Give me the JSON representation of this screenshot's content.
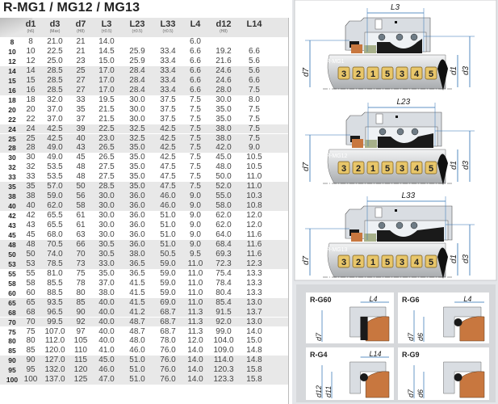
{
  "title": "R-MG1 / MG12 / MG13",
  "table": {
    "columns": [
      {
        "main": "",
        "sub": ""
      },
      {
        "main": "d1",
        "sub": "(h6)"
      },
      {
        "main": "d3",
        "sub": "(Max)"
      },
      {
        "main": "d7",
        "sub": "(H8)"
      },
      {
        "main": "L3",
        "sub": "(±0.5)"
      },
      {
        "main": "L23",
        "sub": "(±0.5)"
      },
      {
        "main": "L33",
        "sub": "(±0.5)"
      },
      {
        "main": "L4",
        "sub": ""
      },
      {
        "main": "d12",
        "sub": "(H8)"
      },
      {
        "main": "L14",
        "sub": ""
      }
    ],
    "rows": [
      [
        "8",
        "8",
        "21.0",
        "21",
        "14.0",
        "",
        "",
        "6.0",
        "",
        ""
      ],
      [
        "10",
        "10",
        "22.5",
        "21",
        "14.5",
        "25.9",
        "33.4",
        "6.6",
        "19.2",
        "6.6"
      ],
      [
        "12",
        "12",
        "25.0",
        "23",
        "15.0",
        "25.9",
        "33.4",
        "6.6",
        "21.6",
        "5.6"
      ],
      [
        "14",
        "14",
        "28.5",
        "25",
        "17.0",
        "28.4",
        "33.4",
        "6.6",
        "24.6",
        "5.6"
      ],
      [
        "15",
        "15",
        "28.5",
        "27",
        "17.0",
        "28.4",
        "33.4",
        "6.6",
        "24.6",
        "6.6"
      ],
      [
        "16",
        "16",
        "28.5",
        "27",
        "17.0",
        "28.4",
        "33.4",
        "6.6",
        "28.0",
        "7.5"
      ],
      [
        "18",
        "18",
        "32.0",
        "33",
        "19.5",
        "30.0",
        "37.5",
        "7.5",
        "30.0",
        "8.0"
      ],
      [
        "20",
        "20",
        "37.0",
        "35",
        "21.5",
        "30.0",
        "37.5",
        "7.5",
        "35.0",
        "7.5"
      ],
      [
        "22",
        "22",
        "37.0",
        "37",
        "21.5",
        "30.0",
        "37.5",
        "7.5",
        "35.0",
        "7.5"
      ],
      [
        "24",
        "24",
        "42.5",
        "39",
        "22.5",
        "32.5",
        "42.5",
        "7.5",
        "38.0",
        "7.5"
      ],
      [
        "25",
        "25",
        "42.5",
        "40",
        "23.0",
        "32.5",
        "42.5",
        "7.5",
        "38.0",
        "7.5"
      ],
      [
        "28",
        "28",
        "49.0",
        "43",
        "26.5",
        "35.0",
        "42.5",
        "7.5",
        "42.0",
        "9.0"
      ],
      [
        "30",
        "30",
        "49.0",
        "45",
        "26.5",
        "35.0",
        "42.5",
        "7.5",
        "45.0",
        "10.5"
      ],
      [
        "32",
        "32",
        "53.5",
        "48",
        "27.5",
        "35.0",
        "47.5",
        "7.5",
        "48.0",
        "10.5"
      ],
      [
        "33",
        "33",
        "53.5",
        "48",
        "27.5",
        "35.0",
        "47.5",
        "7.5",
        "50.0",
        "11.0"
      ],
      [
        "35",
        "35",
        "57.0",
        "50",
        "28.5",
        "35.0",
        "47.5",
        "7.5",
        "52.0",
        "11.0"
      ],
      [
        "38",
        "38",
        "59.0",
        "56",
        "30.0",
        "36.0",
        "46.0",
        "9.0",
        "55.0",
        "10.3"
      ],
      [
        "40",
        "40",
        "62.0",
        "58",
        "30.0",
        "36.0",
        "46.0",
        "9.0",
        "58.0",
        "10.8"
      ],
      [
        "42",
        "42",
        "65.5",
        "61",
        "30.0",
        "36.0",
        "51.0",
        "9.0",
        "62.0",
        "12.0"
      ],
      [
        "43",
        "43",
        "65.5",
        "61",
        "30.0",
        "36.0",
        "51.0",
        "9.0",
        "62.0",
        "12.0"
      ],
      [
        "45",
        "45",
        "68.0",
        "63",
        "30.0",
        "36.0",
        "51.0",
        "9.0",
        "64.0",
        "11.6"
      ],
      [
        "48",
        "48",
        "70.5",
        "66",
        "30.5",
        "36.0",
        "51.0",
        "9.0",
        "68.4",
        "11.6"
      ],
      [
        "50",
        "50",
        "74.0",
        "70",
        "30.5",
        "38.0",
        "50.5",
        "9.5",
        "69.3",
        "11.6"
      ],
      [
        "53",
        "53",
        "78.5",
        "73",
        "33.0",
        "36.5",
        "59.0",
        "11.0",
        "72.3",
        "12.3"
      ],
      [
        "55",
        "55",
        "81.0",
        "75",
        "35.0",
        "36.5",
        "59.0",
        "11.0",
        "75.4",
        "13.3"
      ],
      [
        "58",
        "58",
        "85.5",
        "78",
        "37.0",
        "41.5",
        "59.0",
        "11.0",
        "78.4",
        "13.3"
      ],
      [
        "60",
        "60",
        "88.5",
        "80",
        "38.0",
        "41.5",
        "59.0",
        "11.0",
        "80.4",
        "13.3"
      ],
      [
        "65",
        "65",
        "93.5",
        "85",
        "40.0",
        "41.5",
        "69.0",
        "11.0",
        "85.4",
        "13.0"
      ],
      [
        "68",
        "68",
        "96.5",
        "90",
        "40.0",
        "41.2",
        "68.7",
        "11.3",
        "91.5",
        "13.7"
      ],
      [
        "70",
        "70",
        "99.5",
        "92",
        "40.0",
        "48.7",
        "68.7",
        "11.3",
        "92.0",
        "13.0"
      ],
      [
        "75",
        "75",
        "107.0",
        "97",
        "40.0",
        "48.7",
        "68.7",
        "11.3",
        "99.0",
        "14.0"
      ],
      [
        "80",
        "80",
        "112.0",
        "105",
        "40.0",
        "48.0",
        "78.0",
        "12.0",
        "104.0",
        "15.0"
      ],
      [
        "85",
        "85",
        "120.0",
        "110",
        "41.0",
        "46.0",
        "76.0",
        "14.0",
        "109.0",
        "14.8"
      ],
      [
        "90",
        "90",
        "127.0",
        "115",
        "45.0",
        "51.0",
        "76.0",
        "14.0",
        "114.0",
        "14.8"
      ],
      [
        "95",
        "95",
        "132.0",
        "120",
        "46.0",
        "51.0",
        "76.0",
        "14.0",
        "120.3",
        "15.8"
      ],
      [
        "100",
        "100",
        "137.0",
        "125",
        "47.0",
        "51.0",
        "76.0",
        "14.0",
        "123.3",
        "15.8"
      ]
    ]
  },
  "diagrams": [
    {
      "model": "R-MG1",
      "length_label": "L3",
      "left_dim": "d7",
      "right_dims": [
        "d1",
        "d3"
      ],
      "parts": [
        "3",
        "2",
        "1",
        "5",
        "3",
        "4",
        "5"
      ]
    },
    {
      "model": "R-MG12",
      "length_label": "L23",
      "left_dim": "d7",
      "right_dims": [
        "d1",
        "d3"
      ],
      "parts": [
        "3",
        "2",
        "1",
        "5",
        "3",
        "4",
        "5"
      ]
    },
    {
      "model": "R-MG13",
      "length_label": "L33",
      "left_dim": "d7",
      "right_dims": [
        "d1",
        "d3"
      ],
      "parts": [
        "3",
        "2",
        "1",
        "5",
        "3",
        "4",
        "5"
      ]
    }
  ],
  "seats": [
    {
      "model": "R-G60",
      "length_label": "L4",
      "dims": [
        "d7"
      ]
    },
    {
      "model": "R-G6",
      "length_label": "L4",
      "dims": [
        "d7",
        "d6"
      ]
    },
    {
      "model": "R-G4",
      "length_label": "L14",
      "dims": [
        "d12",
        "d11"
      ]
    },
    {
      "model": "R-G9",
      "length_label": "",
      "dims": [
        "d7",
        "d6"
      ]
    }
  ],
  "colors": {
    "badge": "#e8c66a",
    "seat": "#c8773f",
    "elastomer": "#1a1a1a",
    "housing": "#d9dde2",
    "shaft": "#c9cbce",
    "dimension": "#2a6fb0"
  }
}
